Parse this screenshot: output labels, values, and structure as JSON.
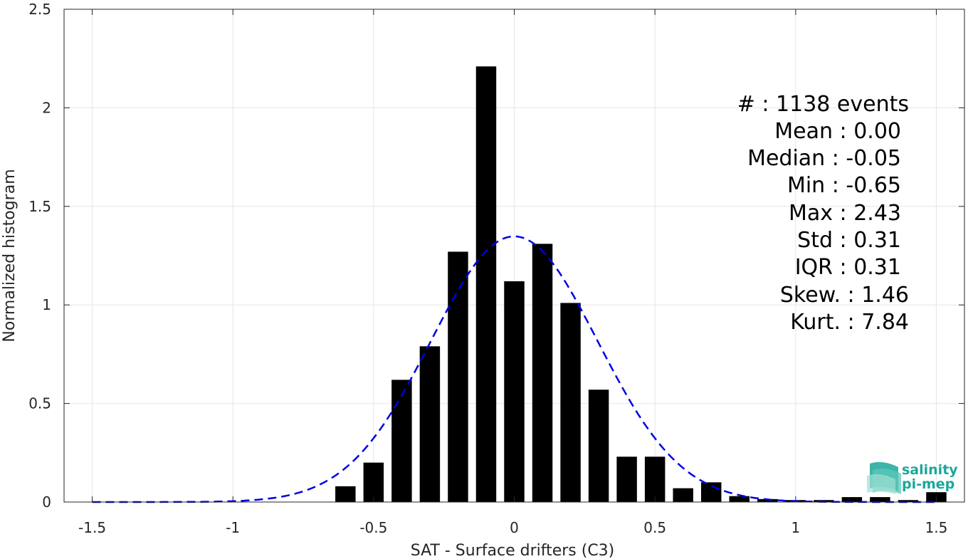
{
  "chart_data": {
    "type": "bar",
    "title": "",
    "xlabel": "SAT - Surface drifters (C3)",
    "ylabel": "Normalized histogram",
    "xlim": [
      -1.6,
      1.6
    ],
    "ylim": [
      0,
      2.5
    ],
    "xticks": [
      -1.5,
      -1,
      -0.5,
      0,
      0.5,
      1,
      1.5
    ],
    "xtick_labels": [
      "-1.5",
      "-1",
      "-0.5",
      "0",
      "0.5",
      "1",
      "1.5"
    ],
    "yticks": [
      0,
      0.5,
      1,
      1.5,
      2,
      2.5
    ],
    "ytick_labels": [
      "0",
      "0.5",
      "1",
      "1.5",
      "2",
      "2.5"
    ],
    "grid": true,
    "bin_width": 0.1,
    "bins": [
      {
        "x": -0.6,
        "y": 0.08
      },
      {
        "x": -0.5,
        "y": 0.2
      },
      {
        "x": -0.4,
        "y": 0.62
      },
      {
        "x": -0.3,
        "y": 0.79
      },
      {
        "x": -0.2,
        "y": 1.27
      },
      {
        "x": -0.1,
        "y": 2.21
      },
      {
        "x": 0.0,
        "y": 1.12
      },
      {
        "x": 0.1,
        "y": 1.31
      },
      {
        "x": 0.2,
        "y": 1.01
      },
      {
        "x": 0.3,
        "y": 0.57
      },
      {
        "x": 0.4,
        "y": 0.23
      },
      {
        "x": 0.5,
        "y": 0.23
      },
      {
        "x": 0.6,
        "y": 0.07
      },
      {
        "x": 0.7,
        "y": 0.1
      },
      {
        "x": 0.8,
        "y": 0.03
      },
      {
        "x": 0.9,
        "y": 0.015
      },
      {
        "x": 1.0,
        "y": 0.01
      },
      {
        "x": 1.1,
        "y": 0.01
      },
      {
        "x": 1.2,
        "y": 0.025
      },
      {
        "x": 1.3,
        "y": 0.025
      },
      {
        "x": 1.4,
        "y": 0.01
      },
      {
        "x": 1.5,
        "y": 0.05
      }
    ],
    "fit_curve": {
      "style": "dashed",
      "color": "#0000e6",
      "mean": 0.0,
      "std": 0.296,
      "x_range": [
        -1.5,
        1.5
      ]
    },
    "bar_color": "#000000",
    "stats": [
      "#  : 1138 events",
      "Mean : 0.00",
      "Median : -0.05",
      "Min : -0.65",
      "Max : 2.43",
      "Std : 0.31",
      "IQR : 0.31",
      "Skew. : 1.46",
      "Kurt. : 7.84"
    ],
    "stats_placement": "top-right"
  },
  "logo": {
    "icon": "salinity-pi-mep-logo-icon",
    "line1": "salinity",
    "line2": "pi-mep",
    "color": "#1aa79a"
  }
}
